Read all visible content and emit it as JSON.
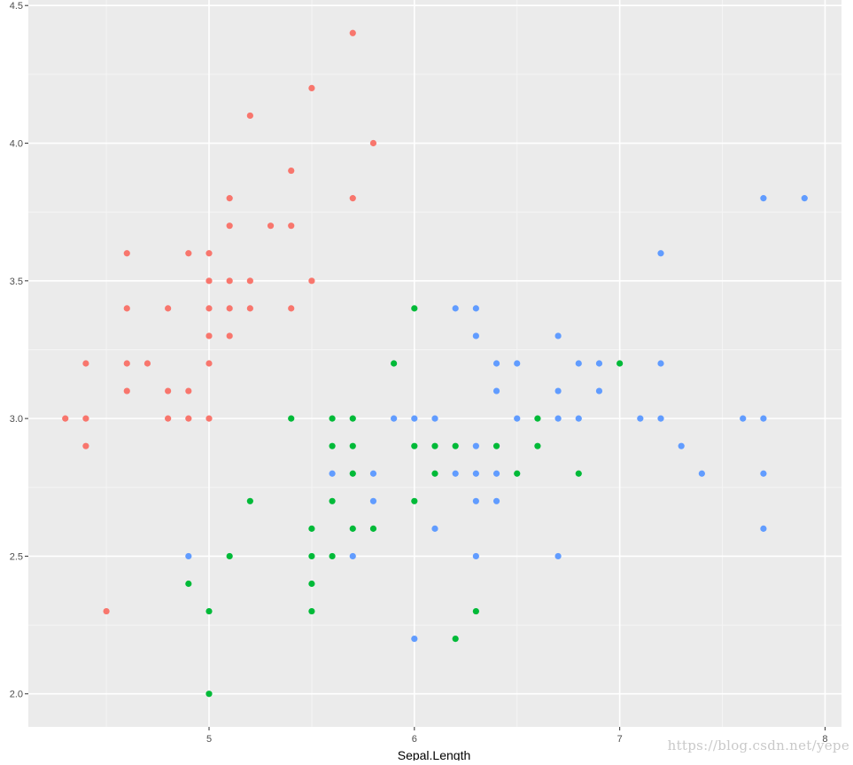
{
  "chart_data": {
    "type": "scatter",
    "title": "",
    "xlabel": "Sepal.Length",
    "ylabel": "",
    "xlim": [
      4.12,
      8.08
    ],
    "ylim": [
      1.88,
      4.52
    ],
    "x_ticks": [
      5,
      6,
      7,
      8
    ],
    "x_tick_labels": [
      "5",
      "6",
      "7",
      "8"
    ],
    "y_ticks": [
      2.0,
      2.5,
      3.0,
      3.5,
      4.0,
      4.5
    ],
    "y_tick_labels": [
      "2.0",
      "2.5",
      "3.0",
      "3.5",
      "4.0",
      "4.5"
    ],
    "grid": true,
    "legend": "none visible",
    "series": [
      {
        "color": "#F8766D",
        "points": [
          [
            5.7,
            4.4
          ],
          [
            5.5,
            4.2
          ],
          [
            5.2,
            4.1
          ],
          [
            5.8,
            4.0
          ],
          [
            5.4,
            3.9
          ],
          [
            5.1,
            3.8
          ],
          [
            5.7,
            3.8
          ],
          [
            5.1,
            3.7
          ],
          [
            5.3,
            3.7
          ],
          [
            5.4,
            3.7
          ],
          [
            4.6,
            3.6
          ],
          [
            4.9,
            3.6
          ],
          [
            5.0,
            3.6
          ],
          [
            5.0,
            3.5
          ],
          [
            5.1,
            3.5
          ],
          [
            5.2,
            3.5
          ],
          [
            5.5,
            3.5
          ],
          [
            4.6,
            3.4
          ],
          [
            4.8,
            3.4
          ],
          [
            5.0,
            3.4
          ],
          [
            5.1,
            3.4
          ],
          [
            5.2,
            3.4
          ],
          [
            5.4,
            3.4
          ],
          [
            5.0,
            3.3
          ],
          [
            5.1,
            3.3
          ],
          [
            4.4,
            3.2
          ],
          [
            4.6,
            3.2
          ],
          [
            4.7,
            3.2
          ],
          [
            5.0,
            3.2
          ],
          [
            4.6,
            3.1
          ],
          [
            4.8,
            3.1
          ],
          [
            4.9,
            3.1
          ],
          [
            4.3,
            3.0
          ],
          [
            4.4,
            3.0
          ],
          [
            4.8,
            3.0
          ],
          [
            4.9,
            3.0
          ],
          [
            5.0,
            3.0
          ],
          [
            4.4,
            2.9
          ],
          [
            4.5,
            2.3
          ]
        ]
      },
      {
        "color": "#00BA38",
        "points": [
          [
            6.0,
            3.4
          ],
          [
            5.9,
            3.2
          ],
          [
            7.0,
            3.2
          ],
          [
            5.4,
            3.0
          ],
          [
            5.6,
            3.0
          ],
          [
            5.7,
            3.0
          ],
          [
            6.6,
            3.0
          ],
          [
            5.6,
            2.9
          ],
          [
            5.7,
            2.9
          ],
          [
            6.0,
            2.9
          ],
          [
            6.1,
            2.9
          ],
          [
            6.2,
            2.9
          ],
          [
            6.4,
            2.9
          ],
          [
            6.6,
            2.9
          ],
          [
            5.7,
            2.8
          ],
          [
            6.1,
            2.8
          ],
          [
            6.5,
            2.8
          ],
          [
            6.8,
            2.8
          ],
          [
            5.2,
            2.7
          ],
          [
            5.6,
            2.7
          ],
          [
            6.0,
            2.7
          ],
          [
            5.5,
            2.6
          ],
          [
            5.7,
            2.6
          ],
          [
            5.8,
            2.6
          ],
          [
            5.1,
            2.5
          ],
          [
            5.5,
            2.5
          ],
          [
            5.6,
            2.5
          ],
          [
            4.9,
            2.4
          ],
          [
            5.5,
            2.4
          ],
          [
            5.0,
            2.3
          ],
          [
            5.5,
            2.3
          ],
          [
            6.3,
            2.3
          ],
          [
            6.2,
            2.2
          ],
          [
            5.0,
            2.0
          ]
        ]
      },
      {
        "color": "#619CFF",
        "points": [
          [
            7.7,
            3.8
          ],
          [
            7.9,
            3.8
          ],
          [
            7.2,
            3.6
          ],
          [
            6.2,
            3.4
          ],
          [
            6.3,
            3.4
          ],
          [
            6.3,
            3.3
          ],
          [
            6.7,
            3.3
          ],
          [
            6.4,
            3.2
          ],
          [
            6.5,
            3.2
          ],
          [
            6.8,
            3.2
          ],
          [
            6.9,
            3.2
          ],
          [
            7.2,
            3.2
          ],
          [
            6.4,
            3.1
          ],
          [
            6.7,
            3.1
          ],
          [
            6.9,
            3.1
          ],
          [
            5.9,
            3.0
          ],
          [
            6.0,
            3.0
          ],
          [
            6.1,
            3.0
          ],
          [
            6.5,
            3.0
          ],
          [
            6.7,
            3.0
          ],
          [
            6.8,
            3.0
          ],
          [
            7.1,
            3.0
          ],
          [
            7.2,
            3.0
          ],
          [
            7.6,
            3.0
          ],
          [
            7.7,
            3.0
          ],
          [
            6.3,
            2.9
          ],
          [
            7.3,
            2.9
          ],
          [
            5.6,
            2.8
          ],
          [
            5.8,
            2.8
          ],
          [
            6.2,
            2.8
          ],
          [
            6.3,
            2.8
          ],
          [
            6.4,
            2.8
          ],
          [
            7.4,
            2.8
          ],
          [
            7.7,
            2.8
          ],
          [
            5.8,
            2.7
          ],
          [
            6.3,
            2.7
          ],
          [
            6.4,
            2.7
          ],
          [
            6.1,
            2.6
          ],
          [
            7.7,
            2.6
          ],
          [
            4.9,
            2.5
          ],
          [
            5.7,
            2.5
          ],
          [
            6.3,
            2.5
          ],
          [
            6.7,
            2.5
          ],
          [
            6.0,
            2.2
          ]
        ]
      }
    ]
  },
  "watermark": "https://blog.csdn.net/yepe",
  "colors": {
    "panel_background": "#EBEBEB",
    "grid_major": "#FFFFFF",
    "tick_label": "#4D4D4D"
  }
}
